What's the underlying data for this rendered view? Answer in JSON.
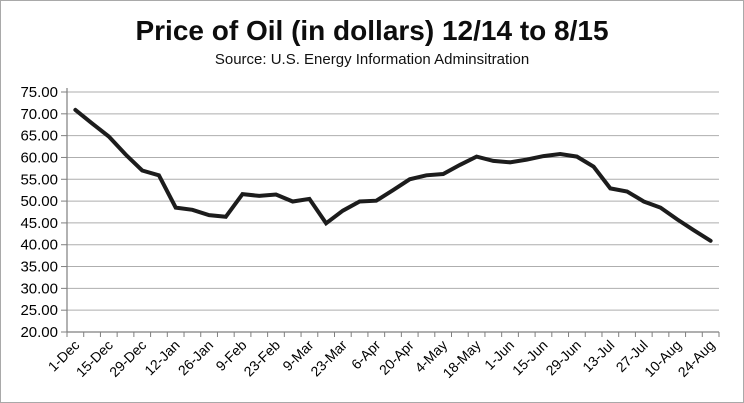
{
  "title": "Price of Oil (in dollars) 12/14 to 8/15",
  "subtitle": "Source: U.S. Energy Information Adminsitration",
  "chart_data": {
    "type": "line",
    "title": "Price of Oil (in dollars) 12/14 to 8/15",
    "subtitle": "Source: U.S. Energy Information Adminsitration",
    "xlabel": "",
    "ylabel": "",
    "ylim": [
      20,
      75
    ],
    "ytick_step": 5,
    "ytick_format": "two_decimals",
    "xtick_label_every": 2,
    "x_label_rotation_deg": -45,
    "grid": "horizontal",
    "legend": "none",
    "categories": [
      "1-Dec",
      "8-Dec",
      "15-Dec",
      "22-Dec",
      "29-Dec",
      "5-Jan",
      "12-Jan",
      "19-Jan",
      "26-Jan",
      "2-Feb",
      "9-Feb",
      "16-Feb",
      "23-Feb",
      "2-Mar",
      "9-Mar",
      "16-Mar",
      "23-Mar",
      "30-Mar",
      "6-Apr",
      "13-Apr",
      "20-Apr",
      "27-Apr",
      "4-May",
      "11-May",
      "18-May",
      "25-May",
      "1-Jun",
      "8-Jun",
      "15-Jun",
      "22-Jun",
      "29-Jun",
      "6-Jul",
      "13-Jul",
      "20-Jul",
      "27-Jul",
      "3-Aug",
      "10-Aug",
      "17-Aug",
      "24-Aug"
    ],
    "shown_x_tick_labels": [
      "1-Dec",
      "15-Dec",
      "29-Dec",
      "12-Jan",
      "26-Jan",
      "9-Feb",
      "23-Feb",
      "9-Mar",
      "23-Mar",
      "6-Apr",
      "20-Apr",
      "4-May",
      "18-May",
      "1-Jun",
      "15-Jun",
      "29-Jun",
      "13-Jul",
      "27-Jul",
      "10-Aug",
      "24-Aug"
    ],
    "series": [
      {
        "name": "Oil price (dollars)",
        "values": [
          70.9,
          67.8,
          64.8,
          60.7,
          57.0,
          55.9,
          48.5,
          48.0,
          46.8,
          46.4,
          51.6,
          51.2,
          51.5,
          49.9,
          50.5,
          44.9,
          47.8,
          49.9,
          50.1,
          52.5,
          55.0,
          55.9,
          56.2,
          58.3,
          60.2,
          59.2,
          58.9,
          59.5,
          60.3,
          60.8,
          60.2,
          57.9,
          52.9,
          52.2,
          49.9,
          48.5,
          45.8,
          43.3,
          40.9
        ]
      }
    ],
    "colors": {
      "line": "#1c1c1c",
      "gridline": "#aeaeae",
      "axis": "#7f7f7f",
      "text": "#000000",
      "background": "#ffffff"
    }
  }
}
